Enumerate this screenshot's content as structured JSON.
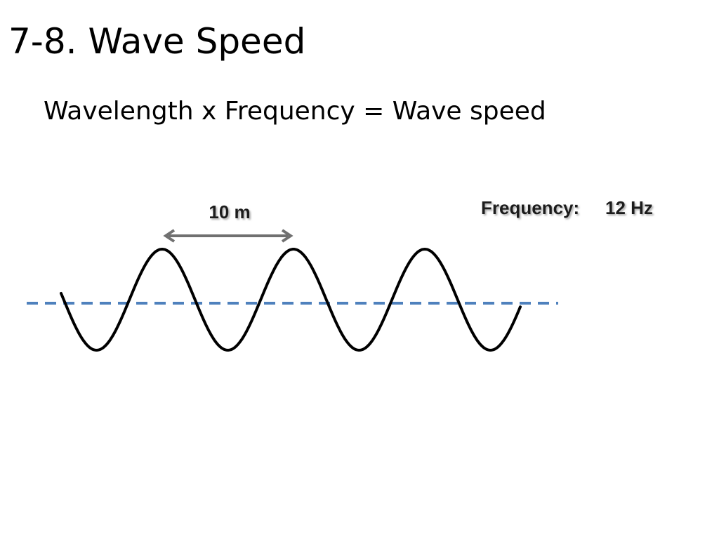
{
  "slide": {
    "title": "7-8. Wave Speed",
    "formula": "Wavelength x Frequency = Wave speed"
  },
  "diagram": {
    "wavelength_label": "10 m",
    "frequency_label": "Frequency:",
    "frequency_value": "12 Hz",
    "colors": {
      "wave": "#000000",
      "equilibrium_line": "#4f81bd",
      "arrow": "#707070",
      "label_shadow": "#bdbdbd"
    }
  }
}
